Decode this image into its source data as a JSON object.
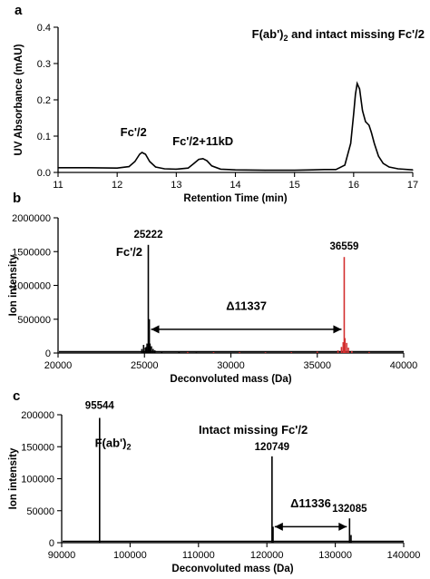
{
  "chart_data": [
    {
      "id": "a",
      "type": "line",
      "panel_letter": "a",
      "title": "F(ab')",
      "title_sub": "2",
      "title_suffix": " and intact missing Fc'/2",
      "xlabel": "Retention Time (min)",
      "ylabel": "UV Absorbance (mAU)",
      "xlim": [
        11,
        17
      ],
      "ylim": [
        0,
        0.4
      ],
      "xticks": [
        "11",
        "12",
        "13",
        "14",
        "15",
        "16",
        "17"
      ],
      "yticks": [
        "0.0",
        "0.1",
        "0.2",
        "0.3",
        "0.4"
      ],
      "series": [
        {
          "color": "#000000",
          "x": [
            11.0,
            11.5,
            12.0,
            12.2,
            12.3,
            12.38,
            12.42,
            12.48,
            12.55,
            12.65,
            12.8,
            13.0,
            13.2,
            13.3,
            13.38,
            13.45,
            13.52,
            13.6,
            13.75,
            14.0,
            14.5,
            15.0,
            15.3,
            15.5,
            15.7,
            15.85,
            15.95,
            16.0,
            16.03,
            16.06,
            16.1,
            16.15,
            16.2,
            16.26,
            16.3,
            16.35,
            16.42,
            16.5,
            16.6,
            16.75,
            17.0
          ],
          "y": [
            0.013,
            0.013,
            0.012,
            0.016,
            0.03,
            0.05,
            0.055,
            0.05,
            0.03,
            0.015,
            0.01,
            0.009,
            0.012,
            0.025,
            0.036,
            0.038,
            0.032,
            0.018,
            0.009,
            0.007,
            0.006,
            0.006,
            0.007,
            0.008,
            0.008,
            0.02,
            0.08,
            0.16,
            0.215,
            0.245,
            0.23,
            0.17,
            0.14,
            0.13,
            0.11,
            0.08,
            0.045,
            0.025,
            0.015,
            0.01,
            0.007
          ]
        }
      ],
      "annotations": [
        {
          "text": "Fc'/2",
          "x": 12.4,
          "y": 0.1,
          "color": "#2b3b8c"
        },
        {
          "text": "Fc'/2+11kD",
          "x": 13.45,
          "y": 0.075,
          "color": "#d32f2f"
        }
      ]
    },
    {
      "id": "b",
      "type": "bar",
      "panel_letter": "b",
      "xlabel": "Deconvoluted mass (Da)",
      "ylabel": "Ion intensity",
      "xlim": [
        20000,
        40000
      ],
      "ylim": [
        0,
        2000000
      ],
      "xticks": [
        "20000",
        "25000",
        "30000",
        "35000",
        "40000"
      ],
      "yticks": [
        "0",
        "500000",
        "1000000",
        "1500000",
        "2000000"
      ],
      "series": [
        {
          "color": "#000000",
          "x": [
            24850,
            24950,
            25050,
            25100,
            25150,
            25222,
            25280,
            25320,
            25400,
            25500,
            25600,
            26000,
            27000,
            28000
          ],
          "y": [
            60000,
            120000,
            80000,
            90000,
            140000,
            1600000,
            500000,
            140000,
            100000,
            60000,
            40000,
            25000,
            15000,
            10000
          ]
        },
        {
          "color": "#d32f2f",
          "x": [
            27500,
            29000,
            30500,
            32000,
            33500,
            35000,
            36200,
            36400,
            36500,
            36559,
            36600,
            36700,
            36800,
            37000,
            38000
          ],
          "y": [
            15000,
            12000,
            14000,
            10000,
            12000,
            20000,
            40000,
            90000,
            160000,
            1420000,
            220000,
            150000,
            80000,
            30000,
            15000
          ]
        }
      ],
      "annotations": [
        {
          "text": "25222",
          "x": 25222,
          "y": 1600000,
          "color": "#000000"
        },
        {
          "text": "Fc'/2",
          "x": 25222,
          "y": 1600000,
          "color": "#2b3b8c"
        },
        {
          "text": "36559",
          "x": 36559,
          "y": 1420000,
          "color": "#000000"
        },
        {
          "text": "Δ11337",
          "x": 30900,
          "y": 640000,
          "color": "#d32f2f"
        }
      ],
      "arrow": {
        "x1": 25222,
        "x2": 36559,
        "y": 350000
      }
    },
    {
      "id": "c",
      "type": "bar",
      "panel_letter": "c",
      "xlabel": "Deconvoluted mass (Da)",
      "ylabel": "Ion intensity",
      "xlim": [
        90000,
        140000
      ],
      "ylim": [
        0,
        200000
      ],
      "xticks": [
        "90000",
        "100000",
        "110000",
        "120000",
        "130000",
        "140000"
      ],
      "yticks": [
        "0",
        "50000",
        "100000",
        "150000",
        "200000"
      ],
      "series": [
        {
          "color": "#000000",
          "x": [
            95544,
            120749,
            120900,
            132085,
            132300
          ],
          "y": [
            195000,
            135000,
            25000,
            38000,
            12000
          ]
        }
      ],
      "annotations": [
        {
          "text": "95544",
          "x": 95544,
          "y": 195000,
          "color": "#000000"
        },
        {
          "text": "F(ab')",
          "x": 97500,
          "y": 150000,
          "color": "#000000",
          "sub": "2"
        },
        {
          "text": "Intact missing Fc'/2",
          "x": 118000,
          "y": 170000,
          "color": "#000000"
        },
        {
          "text": "120749",
          "x": 120749,
          "y": 135000,
          "color": "#000000"
        },
        {
          "text": "132085",
          "x": 132085,
          "y": 38000,
          "color": "#000000"
        },
        {
          "text": "Δ11336",
          "x": 126400,
          "y": 55000,
          "color": "#d32f2f"
        }
      ],
      "arrow": {
        "x1": 120749,
        "x2": 132085,
        "y": 25000
      }
    }
  ]
}
